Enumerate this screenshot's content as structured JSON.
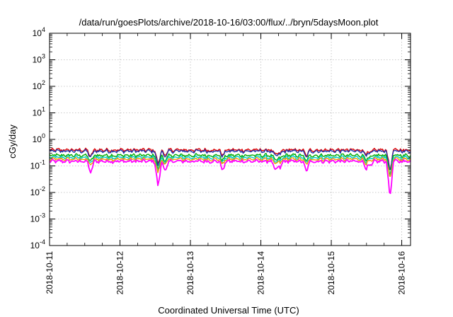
{
  "chart_data": {
    "type": "line",
    "title": "/data/run/goesPlots/archive/2018-10-16/03:00/flux/../bryn/5daysMoon.plot",
    "xlabel": "Coordinated Universal Time (UTC)",
    "ylabel": "cGy/day",
    "yscale": "log",
    "ylim": [
      0.0001,
      10000
    ],
    "xlim": [
      "2018-10-11T00:00",
      "2018-10-16T03:00"
    ],
    "grid": true,
    "x_ticks": [
      "2018-10-11",
      "2018-10-12",
      "2018-10-13",
      "2018-10-14",
      "2018-10-15",
      "2018-10-16"
    ],
    "y_ticks": [
      {
        "base": "10",
        "exp": "-4",
        "value": 0.0001
      },
      {
        "base": "10",
        "exp": "-3",
        "value": 0.001
      },
      {
        "base": "10",
        "exp": "-2",
        "value": 0.01
      },
      {
        "base": "10",
        "exp": "-1",
        "value": 0.1
      },
      {
        "base": "10",
        "exp": "0",
        "value": 1
      },
      {
        "base": "10",
        "exp": "1",
        "value": 10
      },
      {
        "base": "10",
        "exp": "2",
        "value": 100
      },
      {
        "base": "10",
        "exp": "3",
        "value": 1000
      },
      {
        "base": "10",
        "exp": "4",
        "value": 10000
      }
    ],
    "series": [
      {
        "color": "#e00000",
        "base": 0.4
      },
      {
        "color": "#2233aa",
        "base": 0.36
      },
      {
        "color": "#00aa00",
        "base": 0.25
      },
      {
        "color": "#00cccc",
        "base": 0.21
      },
      {
        "color": "#e8a000",
        "base": 0.18
      },
      {
        "color": "#ff00ff",
        "base": 0.15
      }
    ],
    "dips": [
      {
        "t": "2018-10-11T14:00",
        "depth": 0.35
      },
      {
        "t": "2018-10-12T13:00",
        "depth": 0.1
      },
      {
        "t": "2018-10-12T15:30",
        "depth": 0.4
      },
      {
        "t": "2018-10-13T11:00",
        "depth": 0.45
      },
      {
        "t": "2018-10-14T05:00",
        "depth": 0.4
      },
      {
        "t": "2018-10-14T06:30",
        "depth": 0.55
      },
      {
        "t": "2018-10-14T15:30",
        "depth": 0.4
      },
      {
        "t": "2018-10-15T12:00",
        "depth": 0.5
      },
      {
        "t": "2018-10-15T13:30",
        "depth": 0.65
      },
      {
        "t": "2018-10-15T20:00",
        "depth": 0.04
      }
    ]
  }
}
